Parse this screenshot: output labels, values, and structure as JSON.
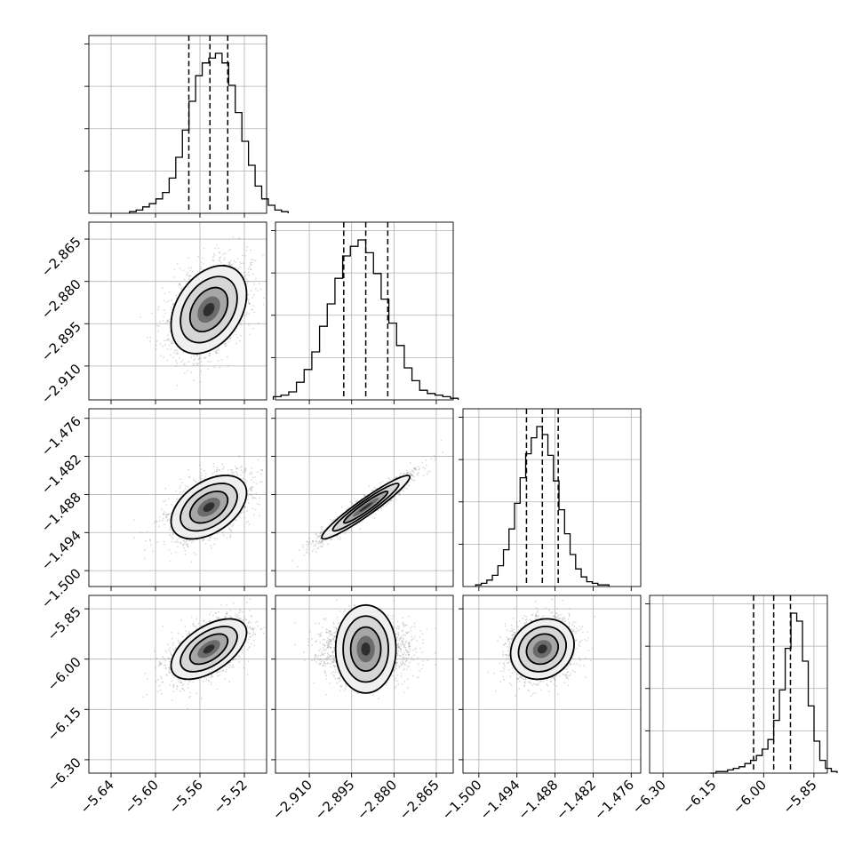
{
  "chart_data": {
    "type": "corner",
    "parameters": [
      {
        "range": [
          -5.66,
          -5.5
        ],
        "ticks": [
          -5.64,
          -5.6,
          -5.56,
          -5.52
        ],
        "tick_labels": [
          "−5.64",
          "−5.60",
          "−5.56",
          "−5.52"
        ],
        "quantiles": [
          -5.57,
          -5.551,
          -5.535
        ],
        "mean": -5.552,
        "sd": 0.017,
        "hist_counts": [
          0.01,
          0.02,
          0.04,
          0.06,
          0.09,
          0.13,
          0.22,
          0.35,
          0.52,
          0.7,
          0.86,
          0.94,
          0.97,
          1.0,
          0.94,
          0.8,
          0.63,
          0.45,
          0.3,
          0.17,
          0.09,
          0.05,
          0.02,
          0.01
        ]
      },
      {
        "range": [
          -2.922,
          -2.859
        ],
        "ticks": [
          -2.91,
          -2.895,
          -2.88,
          -2.865
        ],
        "tick_labels": [
          "−2.910",
          "−2.895",
          "−2.880",
          "−2.865"
        ],
        "quantiles": [
          -2.8978,
          -2.89,
          -2.8822
        ],
        "mean": -2.89,
        "sd": 0.0078,
        "hist_counts": [
          0.02,
          0.03,
          0.05,
          0.11,
          0.19,
          0.3,
          0.46,
          0.6,
          0.76,
          0.9,
          0.96,
          1.0,
          0.92,
          0.79,
          0.63,
          0.48,
          0.34,
          0.2,
          0.12,
          0.06,
          0.04,
          0.03,
          0.02,
          0.01
        ]
      },
      {
        "range": [
          -1.5025,
          -1.4745
        ],
        "ticks": [
          -1.5,
          -1.494,
          -1.488,
          -1.482,
          -1.476
        ],
        "tick_labels": [
          "−1.500",
          "−1.494",
          "−1.488",
          "−1.482",
          "−1.476"
        ],
        "quantiles": [
          -1.4925,
          -1.49,
          -1.4875
        ],
        "mean": -1.49,
        "sd": 0.0025,
        "hist_counts": [
          0.01,
          0.02,
          0.04,
          0.07,
          0.13,
          0.23,
          0.36,
          0.52,
          0.68,
          0.83,
          0.93,
          1.0,
          0.95,
          0.82,
          0.66,
          0.48,
          0.33,
          0.2,
          0.11,
          0.06,
          0.03,
          0.02,
          0.01,
          0.01
        ]
      },
      {
        "range": [
          -6.34,
          -5.81
        ],
        "ticks": [
          -6.3,
          -6.15,
          -6.0,
          -5.85
        ],
        "tick_labels": [
          "−6.30",
          "−6.15",
          "−6.00",
          "−5.85"
        ],
        "quantiles": [
          -6.03,
          -5.97,
          -5.92
        ],
        "mean": -5.97,
        "sd": 0.045,
        "hist_counts": [
          0.0,
          0.01,
          0.01,
          0.02,
          0.03,
          0.04,
          0.06,
          0.08,
          0.11,
          0.15,
          0.21,
          0.33,
          0.52,
          0.78,
          1.0,
          0.95,
          0.7,
          0.42,
          0.2,
          0.08,
          0.03,
          0.01
        ]
      }
    ],
    "correlations": [
      [
        1.0,
        0.35,
        0.45,
        0.55
      ],
      [
        0.35,
        1.0,
        0.95,
        0.0
      ],
      [
        0.45,
        0.95,
        1.0,
        0.15
      ],
      [
        0.55,
        0.0,
        0.15,
        1.0
      ]
    ],
    "contour_levels_sigma": [
      1.0,
      1.5,
      2.0
    ],
    "grid": true,
    "sample_points_per_panel": 2200
  }
}
